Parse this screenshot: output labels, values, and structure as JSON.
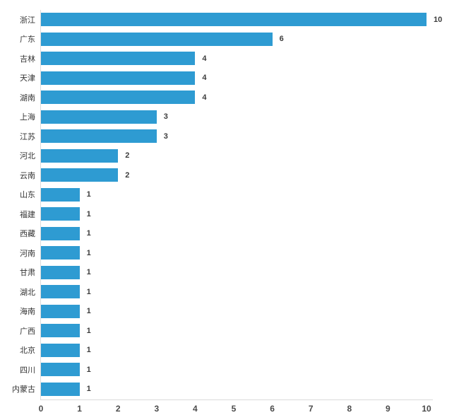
{
  "chart_data": {
    "type": "bar",
    "orientation": "horizontal",
    "title": "",
    "xlabel": "",
    "ylabel": "",
    "categories": [
      "浙江",
      "广东",
      "吉林",
      "天津",
      "湖南",
      "上海",
      "江苏",
      "河北",
      "云南",
      "山东",
      "福建",
      "西藏",
      "河南",
      "甘肃",
      "湖北",
      "海南",
      "广西",
      "北京",
      "四川",
      "内蒙古"
    ],
    "values": [
      10,
      6,
      4,
      4,
      4,
      3,
      3,
      2,
      2,
      1,
      1,
      1,
      1,
      1,
      1,
      1,
      1,
      1,
      1,
      1
    ],
    "data_labels": [
      10,
      6,
      4,
      4,
      4,
      3,
      3,
      2,
      2,
      1,
      1,
      1,
      1,
      1,
      1,
      1,
      1,
      1,
      1,
      1
    ],
    "xlim": [
      0,
      10
    ],
    "x_ticks": [
      0,
      1,
      2,
      3,
      4,
      5,
      6,
      7,
      8,
      9,
      10
    ],
    "grid": false,
    "legend": false,
    "bar_color": "#2E9BD2",
    "axis_line_color": "#d9d9d9"
  }
}
